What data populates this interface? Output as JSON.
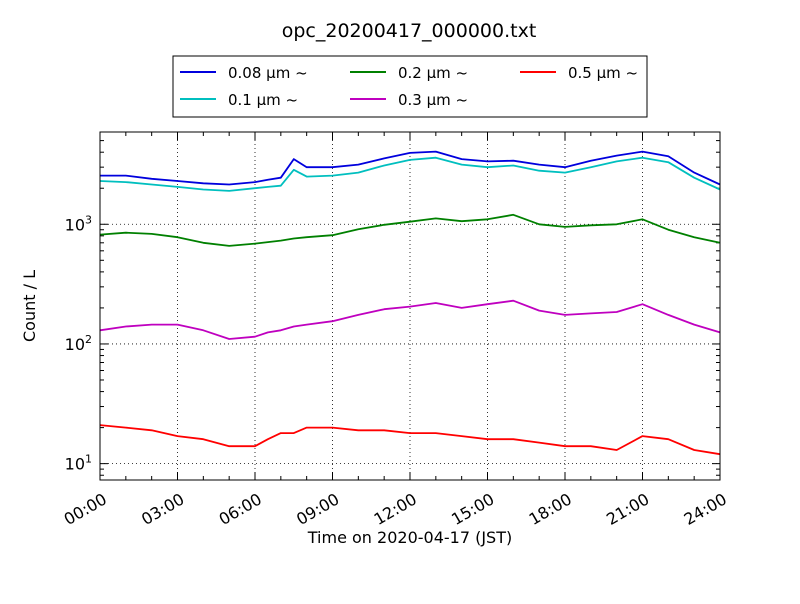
{
  "chart_data": {
    "type": "line",
    "title": "opc_20200417_000000.txt",
    "xlabel": "Time on 2020-04-17 (JST)",
    "ylabel": "Count / L",
    "yscale": "log",
    "xlim": [
      "00:00",
      "24:00"
    ],
    "ylim": [
      7.3,
      5900
    ],
    "grid": true,
    "legend_position": "top-center, outside plot, 3 columns",
    "x_ticks": [
      "00:00",
      "03:00",
      "06:00",
      "09:00",
      "12:00",
      "15:00",
      "18:00",
      "21:00",
      "24:00"
    ],
    "y_ticks": [
      {
        "value": 10,
        "base": "10",
        "exp": "1"
      },
      {
        "value": 100,
        "base": "10",
        "exp": "2"
      },
      {
        "value": 1000,
        "base": "10",
        "exp": "3"
      }
    ],
    "x": [
      "00:00",
      "01:00",
      "02:00",
      "03:00",
      "04:00",
      "05:00",
      "06:00",
      "06:30",
      "07:00",
      "07:30",
      "08:00",
      "09:00",
      "10:00",
      "11:00",
      "12:00",
      "13:00",
      "14:00",
      "15:00",
      "16:00",
      "17:00",
      "18:00",
      "19:00",
      "20:00",
      "21:00",
      "22:00",
      "23:00",
      "24:00"
    ],
    "series": [
      {
        "name": "0.08 μm ~",
        "color": "#0000dd",
        "values": [
          2550,
          2550,
          2400,
          2300,
          2200,
          2150,
          2250,
          2350,
          2450,
          3500,
          3000,
          3000,
          3150,
          3550,
          3950,
          4050,
          3500,
          3350,
          3400,
          3150,
          3000,
          3400,
          3750,
          4050,
          3700,
          2700,
          2150
        ]
      },
      {
        "name": "0.1 μm ~",
        "color": "#00bfbf",
        "values": [
          2300,
          2250,
          2150,
          2050,
          1950,
          1900,
          2000,
          2050,
          2100,
          2850,
          2500,
          2550,
          2700,
          3100,
          3450,
          3600,
          3150,
          3000,
          3100,
          2800,
          2700,
          3000,
          3350,
          3600,
          3300,
          2450,
          1950
        ]
      },
      {
        "name": "0.2 μm ~",
        "color": "#008000",
        "values": [
          820,
          850,
          830,
          780,
          700,
          660,
          690,
          710,
          730,
          760,
          780,
          810,
          910,
          990,
          1050,
          1120,
          1060,
          1100,
          1200,
          1000,
          950,
          980,
          1000,
          1100,
          900,
          780,
          700
        ]
      },
      {
        "name": "0.3 μm ~",
        "color": "#bf00bf",
        "values": [
          130,
          140,
          145,
          145,
          130,
          110,
          115,
          125,
          130,
          140,
          145,
          155,
          175,
          195,
          205,
          220,
          200,
          215,
          230,
          190,
          175,
          180,
          185,
          215,
          175,
          145,
          125
        ]
      },
      {
        "name": "0.5 μm ~",
        "color": "#ff0000",
        "values": [
          21,
          20,
          19,
          17,
          16,
          14,
          14,
          16,
          18,
          18,
          20,
          20,
          19,
          19,
          18,
          18,
          17,
          16,
          16,
          15,
          14,
          14,
          13,
          17,
          16,
          13,
          12
        ]
      }
    ]
  }
}
